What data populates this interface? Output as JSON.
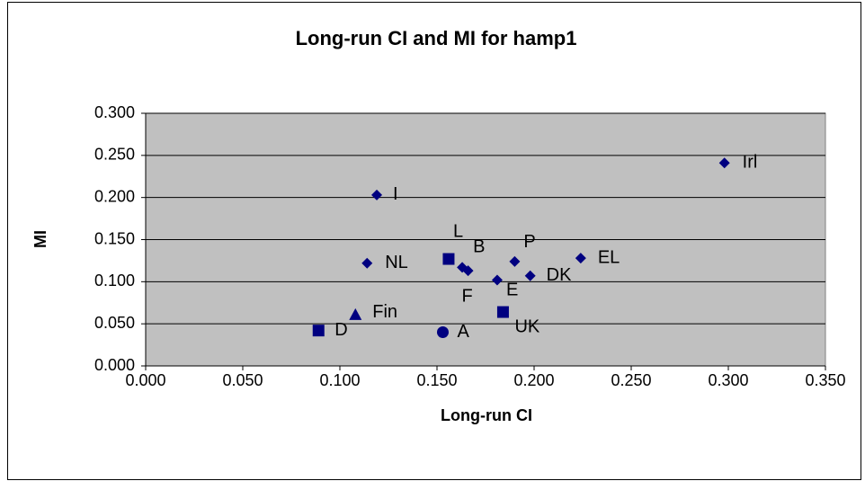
{
  "chart_data": {
    "type": "scatter",
    "title": "Long-run CI and MI for hamp1",
    "x_label": "Long-run CI",
    "y_label": "MI",
    "color": "#000080",
    "plot_background": "#c0c0c0",
    "grid": true,
    "xlim": [
      0,
      0.35
    ],
    "ylim": [
      0,
      0.3
    ],
    "xticks": [
      {
        "value": 0,
        "label": "0.000"
      },
      {
        "value": 0.05,
        "label": "0.050"
      },
      {
        "value": 0.1,
        "label": "0.100"
      },
      {
        "value": 0.15,
        "label": "0.150"
      },
      {
        "value": 0.2,
        "label": "0.200"
      },
      {
        "value": 0.25,
        "label": "0.250"
      },
      {
        "value": 0.3,
        "label": "0.300"
      },
      {
        "value": 0.35,
        "label": "0.350"
      }
    ],
    "yticks": [
      {
        "value": 0,
        "label": "0.000"
      },
      {
        "value": 0.05,
        "label": "0.050"
      },
      {
        "value": 0.1,
        "label": "0.100"
      },
      {
        "value": 0.15,
        "label": "0.150"
      },
      {
        "value": 0.2,
        "label": "0.200"
      },
      {
        "value": 0.25,
        "label": "0.250"
      },
      {
        "value": 0.3,
        "label": "0.300"
      }
    ],
    "points": [
      {
        "label": "Irl",
        "x": 0.298,
        "y": 0.241,
        "marker": "diamond"
      },
      {
        "label": "I",
        "x": 0.119,
        "y": 0.203,
        "marker": "diamond"
      },
      {
        "label": "NL",
        "x": 0.114,
        "y": 0.122,
        "marker": "diamond"
      },
      {
        "label": "L",
        "x": 0.156,
        "y": 0.127,
        "marker": "square"
      },
      {
        "label": "B",
        "x": 0.163,
        "y": 0.117,
        "marker": "diamond"
      },
      {
        "label": "F",
        "x": 0.166,
        "y": 0.113,
        "marker": "diamond"
      },
      {
        "label": "P",
        "x": 0.19,
        "y": 0.124,
        "marker": "diamond"
      },
      {
        "label": "E",
        "x": 0.181,
        "y": 0.102,
        "marker": "diamond"
      },
      {
        "label": "DK",
        "x": 0.198,
        "y": 0.107,
        "marker": "diamond"
      },
      {
        "label": "EL",
        "x": 0.224,
        "y": 0.128,
        "marker": "diamond"
      },
      {
        "label": "UK",
        "x": 0.184,
        "y": 0.064,
        "marker": "square"
      },
      {
        "label": "Fin",
        "x": 0.108,
        "y": 0.061,
        "marker": "triangle"
      },
      {
        "label": "D",
        "x": 0.089,
        "y": 0.042,
        "marker": "square"
      },
      {
        "label": "A",
        "x": 0.153,
        "y": 0.04,
        "marker": "circle"
      }
    ]
  }
}
